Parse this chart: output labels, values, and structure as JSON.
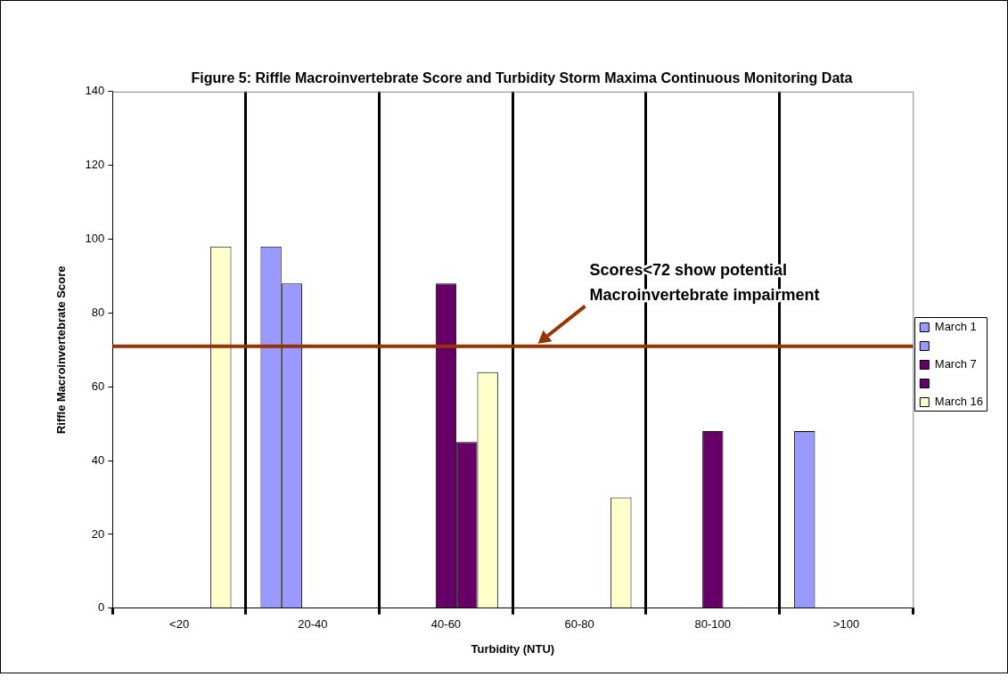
{
  "chart_data": {
    "type": "bar",
    "title": "Figure 5: Riffle Macroinvertebrate Score and Turbidity Storm Maxima Continuous Monitoring Data",
    "xlabel": "Turbidity (NTU)",
    "ylabel": "Riffle Macroinvertebrate Score",
    "categories": [
      "<20",
      "20-40",
      "40-60",
      "60-80",
      "80-100",
      ">100"
    ],
    "series": [
      {
        "name": "March 1",
        "color": "#9999ff",
        "values": [
          null,
          98,
          null,
          null,
          null,
          48
        ]
      },
      {
        "color": "#9999ff",
        "values": [
          null,
          88,
          null,
          null,
          null,
          null
        ]
      },
      {
        "name": "March 7",
        "color": "#660066",
        "values": [
          null,
          null,
          88,
          null,
          48,
          null
        ]
      },
      {
        "color": "#660066",
        "values": [
          null,
          null,
          45,
          null,
          null,
          null
        ]
      },
      {
        "name": "March 16",
        "color": "#ffffcc",
        "values": [
          98,
          null,
          64,
          30,
          null,
          null
        ]
      }
    ],
    "ylim": [
      0,
      140
    ],
    "yticks": [
      0,
      20,
      40,
      60,
      80,
      100,
      120,
      140
    ],
    "grid": "x",
    "legend": "right",
    "ref_lines": [
      {
        "axis": "y",
        "value": 71,
        "label": "Scores<72 show potential Macroinvertebrate impairment",
        "color": "#993300"
      }
    ]
  }
}
